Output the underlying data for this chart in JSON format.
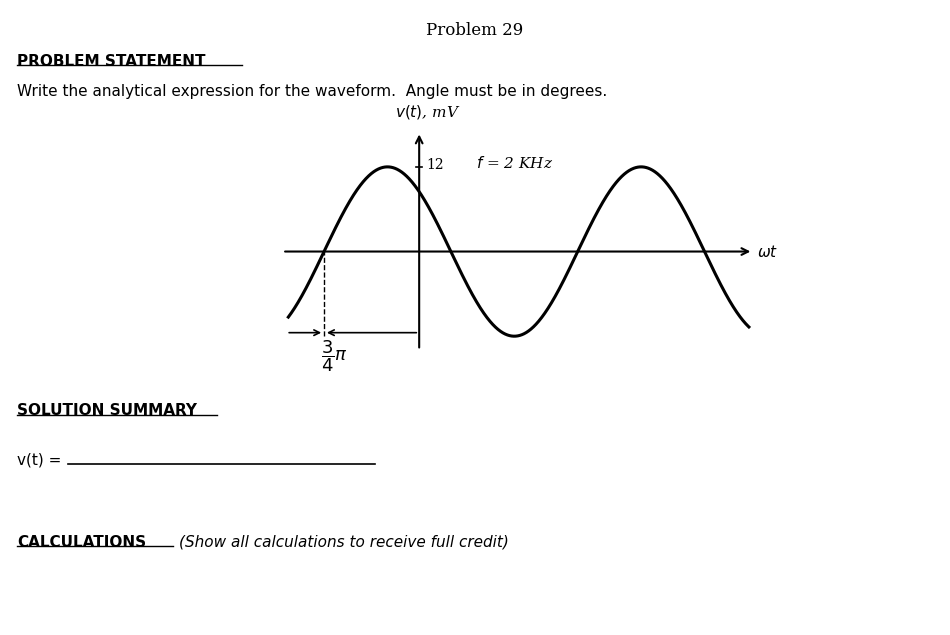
{
  "title": "Problem 29",
  "problem_statement_header": "PROBLEM STATEMENT",
  "problem_text": "Write the analytical expression for the waveform.  Angle must be in degrees.",
  "y_axis_label": "v(t), mV",
  "x_axis_label": "ωt",
  "annotation_amplitude": "12",
  "annotation_freq": "f = 2 KHz",
  "solution_header": "SOLUTION SUMMARY",
  "vt_label": "v(t) = ",
  "calc_header": "CALCULATIONS",
  "calc_subtext": "Show all calculations to receive full credit",
  "bg_color": "#ffffff",
  "wave_color": "#000000",
  "amplitude": 12,
  "phase_shift": 2.356194,
  "figsize": [
    9.5,
    6.35
  ],
  "dpi": 100
}
